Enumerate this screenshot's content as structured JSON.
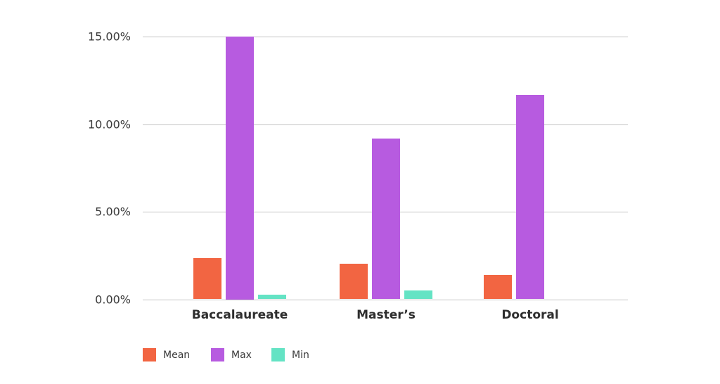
{
  "chart_data": {
    "type": "bar",
    "title": "",
    "xlabel": "",
    "ylabel": "",
    "categories": [
      "Baccalaureate",
      "Master’s",
      "Doctoral"
    ],
    "series": [
      {
        "name": "Mean",
        "color": "#F26542",
        "values": [
          2.36,
          2.04,
          1.37
        ]
      },
      {
        "name": "Max",
        "color": "#B75BE0",
        "values": [
          15.0,
          9.16,
          11.68
        ]
      },
      {
        "name": "Min",
        "color": "#64E3C4",
        "values": [
          0.27,
          0.5,
          0.0
        ]
      }
    ],
    "ylim": [
      0,
      15
    ],
    "yticks": [
      "0.00%",
      "5.00%",
      "10.00%",
      "15.00%"
    ],
    "grid": true,
    "legend_position": "bottom-left"
  }
}
